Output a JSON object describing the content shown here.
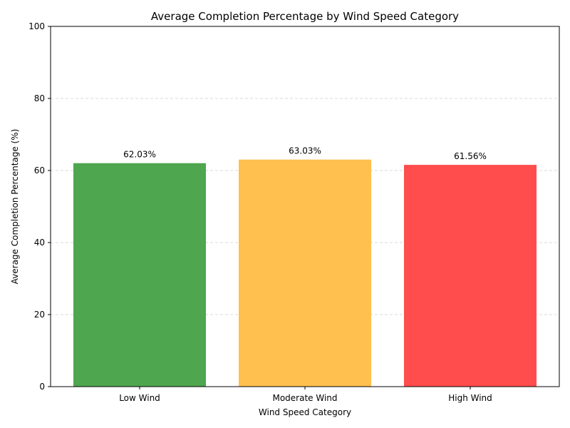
{
  "chart_data": {
    "type": "bar",
    "title": "Average Completion Percentage by Wind Speed Category",
    "xlabel": "Wind Speed Category",
    "ylabel": "Average Completion Percentage (%)",
    "categories": [
      "Low Wind",
      "Moderate Wind",
      "High Wind"
    ],
    "values": [
      62.03,
      63.03,
      61.56
    ],
    "value_labels": [
      "62.03%",
      "63.03%",
      "61.56%"
    ],
    "colors": [
      "#4ea64e",
      "#ffc04f",
      "#ff4c4c"
    ],
    "ylim": [
      0,
      100
    ],
    "yticks": [
      0,
      20,
      40,
      60,
      80,
      100
    ],
    "grid": "y-dashed",
    "legend": "none"
  }
}
